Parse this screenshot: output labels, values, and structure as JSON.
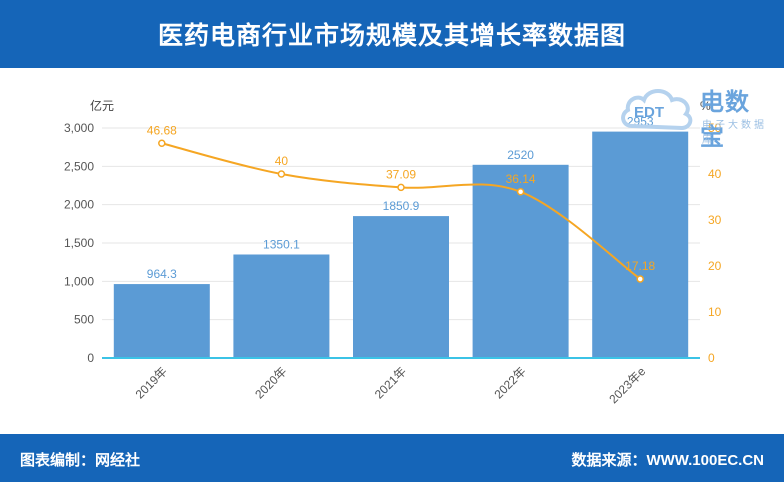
{
  "header": {
    "title": "医药电商行业市场规模及其增长率数据图"
  },
  "footer": {
    "left": "图表编制：网经社",
    "right": "数据来源：WWW.100EC.CN"
  },
  "logo": {
    "name": "电数宝",
    "sub": "电子大数据库",
    "mark": "EDT",
    "color": "#6aa4dd"
  },
  "chart_data": {
    "type": "bar",
    "categories": [
      "2019年",
      "2020年",
      "2021年",
      "2022年",
      "2023年e"
    ],
    "series": [
      {
        "values": [
          964.3,
          1350.1,
          1850.9,
          2520,
          2953
        ],
        "axis": "left",
        "kind": "bar",
        "color": "#5b9bd5",
        "labels": [
          "964.3",
          "1350.1",
          "1850.9",
          "2520",
          "2953"
        ]
      },
      {
        "values": [
          46.68,
          40,
          37.09,
          36.14,
          17.18
        ],
        "axis": "right",
        "kind": "line",
        "color": "#f5a623",
        "labels": [
          "46.68",
          "40",
          "37.09",
          "36.14",
          "17.18"
        ]
      }
    ],
    "ylabel": "亿元",
    "ylim": [
      0,
      3000
    ],
    "yticks": [
      0,
      500,
      1000,
      1500,
      2000,
      2500,
      3000
    ],
    "ytick_labels": [
      "0",
      "500",
      "1,000",
      "1,500",
      "2,000",
      "2,500",
      "3,000"
    ],
    "y2label": "%",
    "y2lim": [
      0,
      50
    ],
    "y2ticks": [
      0,
      10,
      20,
      30,
      40,
      50
    ],
    "y2tick_labels": [
      "0",
      "10",
      "20",
      "30",
      "40",
      "50"
    ],
    "grid": true,
    "legend": "none"
  }
}
